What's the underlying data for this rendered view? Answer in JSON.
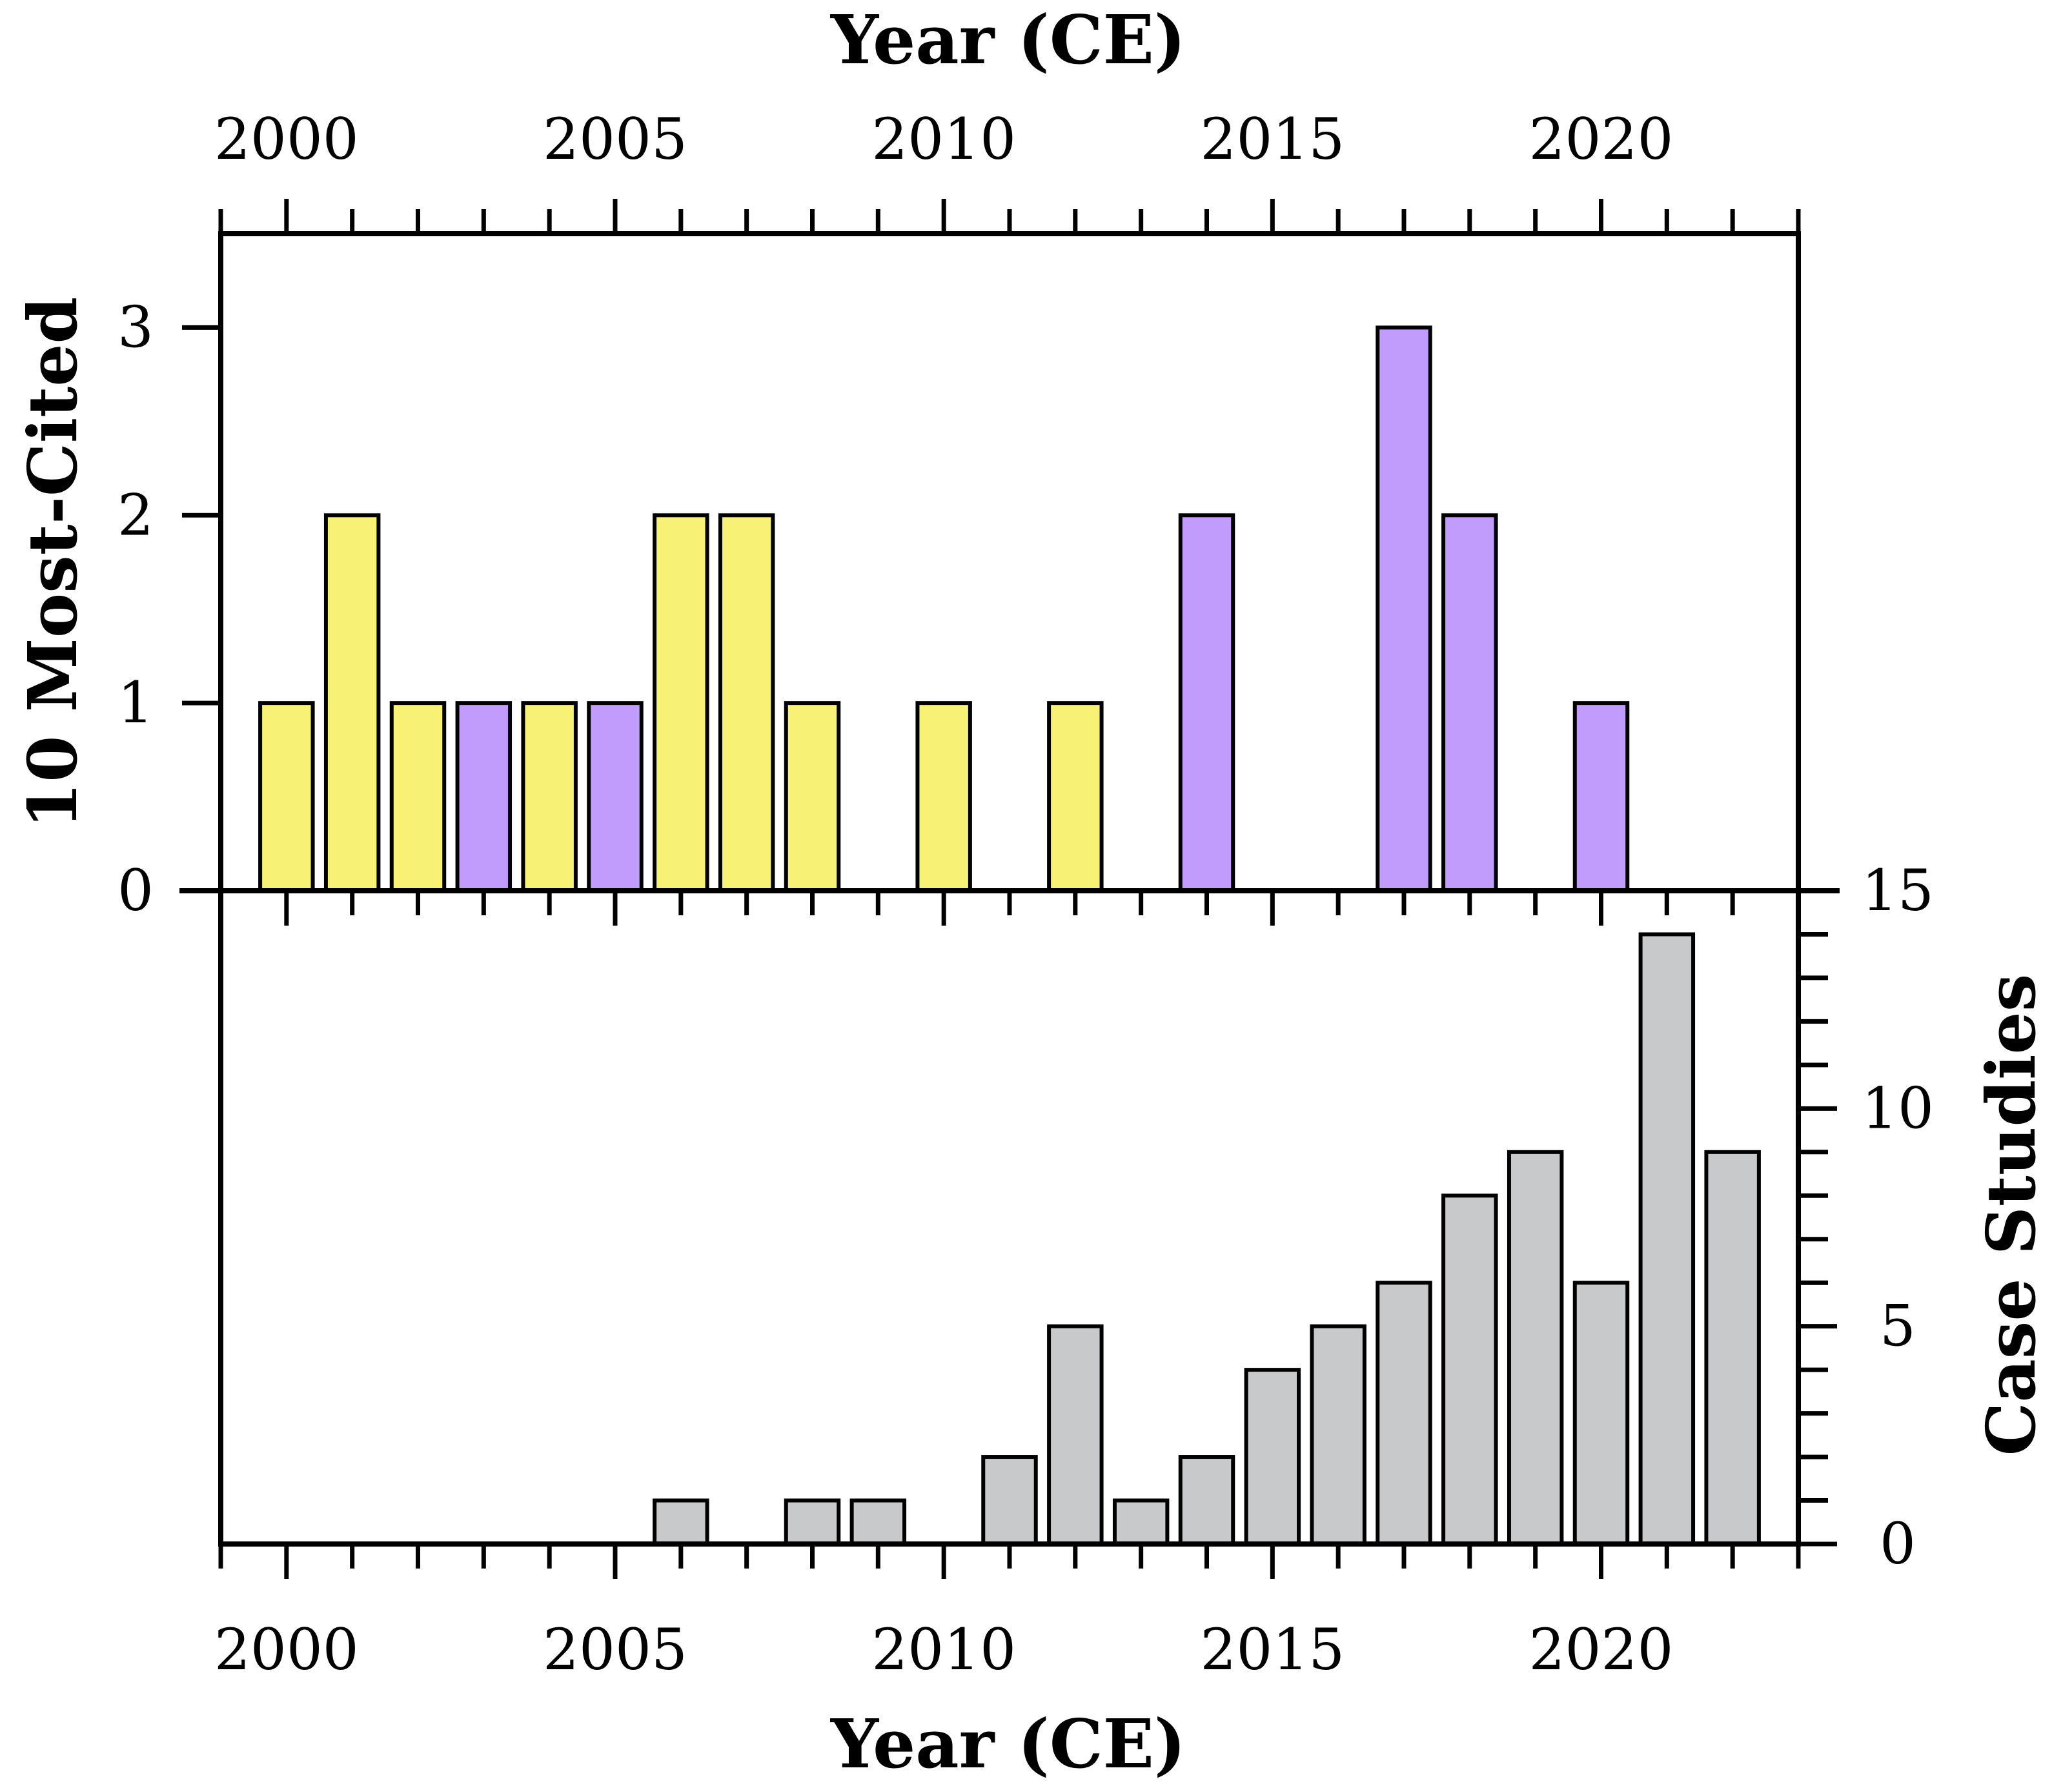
{
  "chart_data": [
    {
      "id": "top",
      "type": "bar",
      "title": "",
      "xlabel": "Year (CE)",
      "ylabel": "10 Most-Cited",
      "ylim": [
        0,
        3.5
      ],
      "yticks": [
        0,
        1,
        2,
        3
      ],
      "xlim": [
        1999,
        2023
      ],
      "xticks_labeled": [
        2000,
        2005,
        2010,
        2015,
        2020
      ],
      "xaxis_position": "top",
      "yaxis_position": "left",
      "legend": "none",
      "colors": {
        "category_a": "#f7f275",
        "category_b": "#c29cfc"
      },
      "bars": [
        {
          "year": 2000,
          "value": 1,
          "group": "category_a"
        },
        {
          "year": 2001,
          "value": 2,
          "group": "category_a"
        },
        {
          "year": 2002,
          "value": 1,
          "group": "category_a"
        },
        {
          "year": 2003,
          "value": 1,
          "group": "category_b"
        },
        {
          "year": 2004,
          "value": 1,
          "group": "category_a"
        },
        {
          "year": 2005,
          "value": 1,
          "group": "category_b"
        },
        {
          "year": 2006,
          "value": 2,
          "group": "category_a"
        },
        {
          "year": 2007,
          "value": 2,
          "group": "category_a"
        },
        {
          "year": 2008,
          "value": 1,
          "group": "category_a"
        },
        {
          "year": 2010,
          "value": 1,
          "group": "category_a"
        },
        {
          "year": 2012,
          "value": 1,
          "group": "category_a"
        },
        {
          "year": 2014,
          "value": 2,
          "group": "category_b"
        },
        {
          "year": 2017,
          "value": 3,
          "group": "category_b"
        },
        {
          "year": 2018,
          "value": 2,
          "group": "category_b"
        },
        {
          "year": 2020,
          "value": 1,
          "group": "category_b"
        }
      ]
    },
    {
      "id": "bottom",
      "type": "bar",
      "title": "",
      "xlabel": "Year (CE)",
      "ylabel": "Case Studies",
      "ylim": [
        0,
        15
      ],
      "yticks": [
        0,
        5,
        10,
        15
      ],
      "yminor_step": 1,
      "xlim": [
        1999,
        2023
      ],
      "xticks_labeled": [
        2000,
        2005,
        2010,
        2015,
        2020
      ],
      "xaxis_position": "bottom",
      "yaxis_position": "right",
      "legend": "none",
      "color": "#c8c9cb",
      "bars": [
        {
          "year": 2006,
          "value": 1
        },
        {
          "year": 2008,
          "value": 1
        },
        {
          "year": 2009,
          "value": 1
        },
        {
          "year": 2011,
          "value": 2
        },
        {
          "year": 2012,
          "value": 5
        },
        {
          "year": 2013,
          "value": 1
        },
        {
          "year": 2014,
          "value": 2
        },
        {
          "year": 2015,
          "value": 4
        },
        {
          "year": 2016,
          "value": 5
        },
        {
          "year": 2017,
          "value": 6
        },
        {
          "year": 2018,
          "value": 8
        },
        {
          "year": 2019,
          "value": 9
        },
        {
          "year": 2020,
          "value": 6
        },
        {
          "year": 2021,
          "value": 14
        },
        {
          "year": 2022,
          "value": 9
        }
      ]
    }
  ]
}
